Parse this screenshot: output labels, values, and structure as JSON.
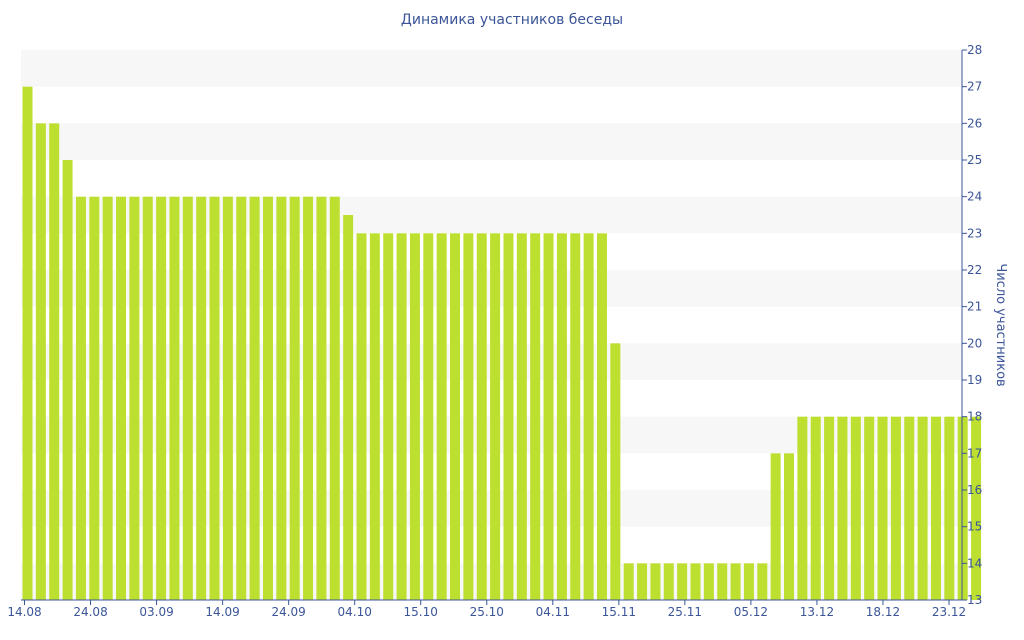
{
  "chart_data": {
    "type": "bar",
    "title": "Динамика участников беседы",
    "ylabel": "Число участников",
    "xlabel": "",
    "ylim": [
      13,
      28
    ],
    "yticks": [
      13,
      14,
      15,
      16,
      17,
      18,
      19,
      20,
      21,
      22,
      23,
      24,
      25,
      26,
      27,
      28
    ],
    "xticks": [
      "14.08",
      "24.08",
      "03.09",
      "14.09",
      "24.09",
      "04.10",
      "15.10",
      "25.10",
      "04.11",
      "15.11",
      "25.11",
      "05.12",
      "13.12",
      "18.12",
      "23.12"
    ],
    "values": [
      27,
      26,
      26,
      25,
      24,
      24,
      24,
      24,
      24,
      24,
      24,
      24,
      24,
      24,
      24,
      24,
      24,
      24,
      24,
      24,
      24,
      24,
      24,
      24,
      23.5,
      23,
      23,
      23,
      23,
      23,
      23,
      23,
      23,
      23,
      23,
      23,
      23,
      23,
      23,
      23,
      23,
      23,
      23,
      23,
      20,
      14,
      14,
      14,
      14,
      14,
      14,
      14,
      14,
      14,
      14,
      14,
      17,
      17,
      18,
      18,
      18,
      18,
      18,
      18,
      18,
      18,
      18,
      18,
      18,
      18,
      18,
      18
    ],
    "grid": true,
    "bar_color": "#bddf2f",
    "band_color": "#f7f7f7",
    "text_color": "#3b5598",
    "axis_color": "#3b5598"
  }
}
